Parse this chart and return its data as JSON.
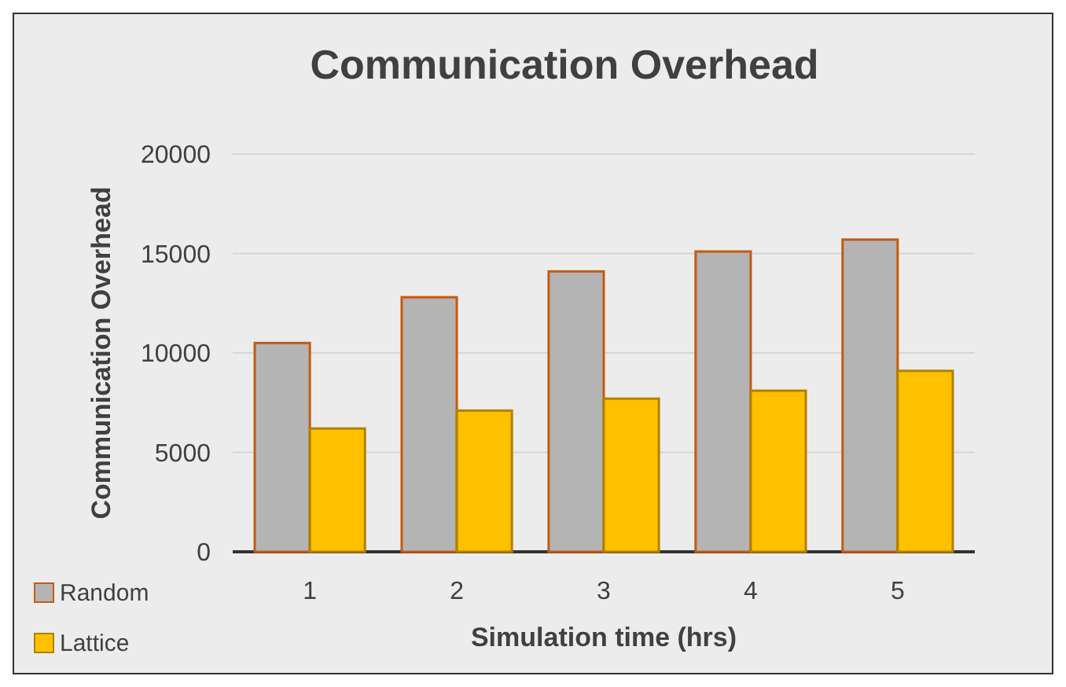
{
  "chart_data": {
    "type": "bar",
    "title": "Communication Overhead",
    "xlabel": "Simulation time (hrs)",
    "ylabel": "Communication Overhead",
    "categories": [
      "1",
      "2",
      "3",
      "4",
      "5"
    ],
    "series": [
      {
        "name": "Random",
        "color": "#b4b4b4",
        "values": [
          10500,
          12800,
          14100,
          15100,
          15700
        ]
      },
      {
        "name": "Lattice",
        "color": "#ffc000",
        "values": [
          6200,
          7100,
          7700,
          8100,
          9100
        ]
      }
    ],
    "ylim": [
      0,
      20000
    ],
    "yticks": [
      0,
      5000,
      10000,
      15000,
      20000
    ],
    "grid": "y",
    "legend": "bottom left"
  }
}
